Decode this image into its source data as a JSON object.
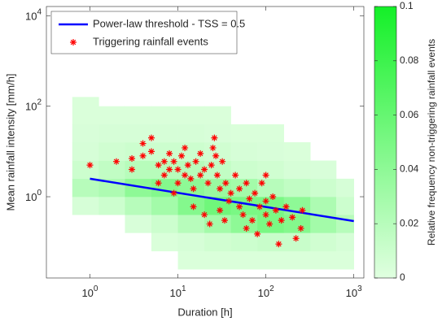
{
  "chart_data": {
    "type": "scatter",
    "xlabel": "Duration [h]",
    "ylabel": "Mean rainfall intensity [mm/h]",
    "xscale": "log",
    "yscale": "log",
    "xlim": [
      0.32,
      1300
    ],
    "ylim": [
      0.016,
      16000
    ],
    "xticks": [
      {
        "value": 1,
        "label": "10^0"
      },
      {
        "value": 10,
        "label": "10^1"
      },
      {
        "value": 100,
        "label": "10^2"
      },
      {
        "value": 1000,
        "label": "10^3"
      }
    ],
    "yticks": [
      {
        "value": 1,
        "label": "10^0"
      },
      {
        "value": 100,
        "label": "10^2"
      },
      {
        "value": 10000,
        "label": "10^4"
      }
    ],
    "legend": "upper left",
    "series": [
      {
        "name": "Power-law threshold - TSS = 0.5",
        "type": "line",
        "color": "#0000ff",
        "x": [
          1,
          1000
        ],
        "values": [
          2.5,
          0.29
        ]
      },
      {
        "name": "Triggering rainfall events",
        "type": "scatter",
        "marker": "*",
        "color": "#ff0000",
        "x": [
          1,
          2,
          3,
          3,
          4,
          5,
          5,
          4,
          6,
          7,
          8,
          8,
          9,
          10,
          10,
          11,
          12,
          13,
          14,
          15,
          16,
          18,
          20,
          22,
          24,
          25,
          26,
          27,
          28,
          30,
          30,
          32,
          35,
          38,
          40,
          45,
          50,
          50,
          55,
          60,
          65,
          70,
          75,
          80,
          85,
          90,
          100,
          100,
          110,
          120,
          130,
          140,
          150,
          170,
          200,
          220,
          250,
          260,
          6,
          9,
          15,
          20,
          23,
          12,
          7,
          18,
          34,
          60,
          100
        ],
        "values": [
          5,
          6,
          7,
          4,
          15,
          10,
          20,
          8,
          5,
          3,
          4,
          9,
          6,
          4,
          2,
          8,
          3,
          5,
          2.5,
          1.5,
          6,
          3,
          4,
          2,
          5,
          12,
          20,
          8,
          3,
          1.5,
          0.5,
          6,
          2,
          0.8,
          1.2,
          3,
          0.6,
          1.5,
          0.4,
          2,
          0.9,
          0.3,
          1.2,
          0.15,
          0.6,
          2,
          0.8,
          0.4,
          0.25,
          1,
          0.5,
          0.09,
          0.3,
          0.6,
          0.35,
          0.12,
          0.2,
          0.5,
          2,
          1.2,
          0.6,
          0.4,
          0.25,
          12,
          6,
          9,
          0.3,
          0.2,
          3
        ]
      }
    ],
    "heatmap": {
      "x_edges": [
        0.63,
        1.26,
        2.5,
        5,
        10,
        20,
        40,
        80,
        160,
        320,
        630,
        1000
      ],
      "y_edges": [
        0.025,
        0.063,
        0.16,
        0.4,
        1,
        2.5,
        6.3,
        16,
        40,
        100,
        160
      ],
      "values": [
        [
          null,
          null,
          null,
          null,
          0.003,
          0.003,
          0.003,
          0.003,
          0.003,
          0.003,
          0.003
        ],
        [
          null,
          null,
          null,
          0.003,
          0.005,
          0.008,
          0.01,
          0.012,
          0.012,
          0.008,
          0.005
        ],
        [
          null,
          null,
          0.004,
          0.01,
          0.02,
          0.03,
          0.04,
          0.05,
          0.045,
          0.03,
          0.02
        ],
        [
          0.005,
          0.01,
          0.02,
          0.03,
          0.045,
          0.055,
          0.05,
          0.05,
          0.04,
          0.025,
          0.01
        ],
        [
          0.02,
          0.025,
          0.04,
          0.045,
          0.04,
          0.035,
          0.03,
          0.02,
          0.015,
          0.01,
          0.005
        ],
        [
          0.01,
          0.015,
          0.02,
          0.02,
          0.02,
          0.015,
          0.01,
          0.008,
          0.005,
          0.004,
          null
        ],
        [
          0.005,
          0.008,
          0.01,
          0.01,
          0.01,
          0.008,
          0.005,
          0.004,
          0.003,
          null,
          null
        ],
        [
          0.004,
          0.005,
          0.005,
          0.005,
          0.005,
          0.004,
          0.003,
          0.003,
          null,
          null,
          null
        ],
        [
          0.003,
          0.003,
          0.003,
          0.003,
          0.003,
          0.003,
          null,
          null,
          null,
          null,
          null
        ],
        [
          0.003,
          null,
          null,
          null,
          null,
          null,
          null,
          null,
          null,
          null,
          null
        ]
      ],
      "colorbar": {
        "label": "Relative frequency non-triggering rainfall events",
        "lim": [
          0,
          0.1
        ],
        "ticks": [
          0,
          0.02,
          0.04,
          0.06,
          0.08,
          0.1
        ],
        "colormap": [
          "#e0ffe0",
          "#14f028"
        ]
      }
    }
  }
}
